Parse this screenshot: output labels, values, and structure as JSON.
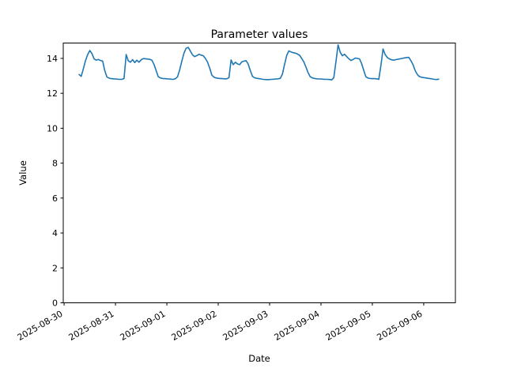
{
  "chart_data": {
    "type": "line",
    "title": "Parameter values",
    "xlabel": "Date",
    "ylabel": "Value",
    "grid": false,
    "legend": "none",
    "line_color": "#1f77b4",
    "background_color": "#ffffff",
    "y_ticks": [
      0,
      2,
      4,
      6,
      8,
      10,
      12,
      14
    ],
    "ylim": [
      0,
      14.88
    ],
    "x_tick_labels": [
      "2025-08-30",
      "2025-08-31",
      "2025-09-01",
      "2025-09-02",
      "2025-09-03",
      "2025-09-04",
      "2025-09-05",
      "2025-09-06"
    ],
    "x_tick_rotation_deg": 30,
    "xlim_hours_from_first_tick": [
      -0.4,
      182.8
    ],
    "series": [
      {
        "name": "Parameter values",
        "x_start": "2025-08-30T07:00",
        "x_step_hours": 1,
        "values": [
          13.08,
          12.97,
          13.4,
          13.88,
          14.22,
          14.45,
          14.28,
          13.97,
          13.9,
          13.94,
          13.88,
          13.85,
          13.3,
          12.94,
          12.87,
          12.84,
          12.83,
          12.82,
          12.81,
          12.8,
          12.8,
          12.85,
          14.22,
          13.86,
          13.78,
          13.93,
          13.76,
          13.9,
          13.78,
          13.92,
          13.99,
          13.98,
          13.96,
          13.95,
          13.9,
          13.65,
          13.3,
          12.95,
          12.88,
          12.85,
          12.84,
          12.83,
          12.82,
          12.81,
          12.8,
          12.84,
          12.95,
          13.35,
          13.85,
          14.3,
          14.58,
          14.63,
          14.42,
          14.2,
          14.1,
          14.16,
          14.24,
          14.19,
          14.15,
          14.0,
          13.79,
          13.45,
          13.05,
          12.92,
          12.88,
          12.86,
          12.85,
          12.84,
          12.83,
          12.83,
          12.9,
          13.91,
          13.64,
          13.78,
          13.68,
          13.64,
          13.8,
          13.84,
          13.87,
          13.68,
          13.3,
          12.97,
          12.89,
          12.86,
          12.84,
          12.82,
          12.8,
          12.79,
          12.78,
          12.79,
          12.8,
          12.81,
          12.82,
          12.83,
          12.86,
          13.1,
          13.65,
          14.18,
          14.43,
          14.37,
          14.33,
          14.3,
          14.25,
          14.18,
          14.0,
          13.8,
          13.5,
          13.18,
          12.95,
          12.88,
          12.85,
          12.83,
          12.82,
          12.82,
          12.81,
          12.8,
          12.8,
          12.79,
          12.77,
          12.9,
          13.8,
          14.78,
          14.35,
          14.15,
          14.24,
          14.1,
          13.98,
          13.88,
          13.94,
          14.02,
          14.0,
          13.97,
          13.7,
          13.31,
          12.95,
          12.87,
          12.85,
          12.84,
          12.84,
          12.83,
          12.8,
          13.6,
          14.54,
          14.22,
          14.05,
          13.97,
          13.92,
          13.9,
          13.93,
          13.95,
          13.98,
          14.0,
          14.03,
          14.05,
          14.06,
          13.87,
          13.64,
          13.3,
          13.08,
          12.96,
          12.92,
          12.9,
          12.88,
          12.86,
          12.84,
          12.82,
          12.8,
          12.79,
          12.81
        ]
      }
    ]
  }
}
